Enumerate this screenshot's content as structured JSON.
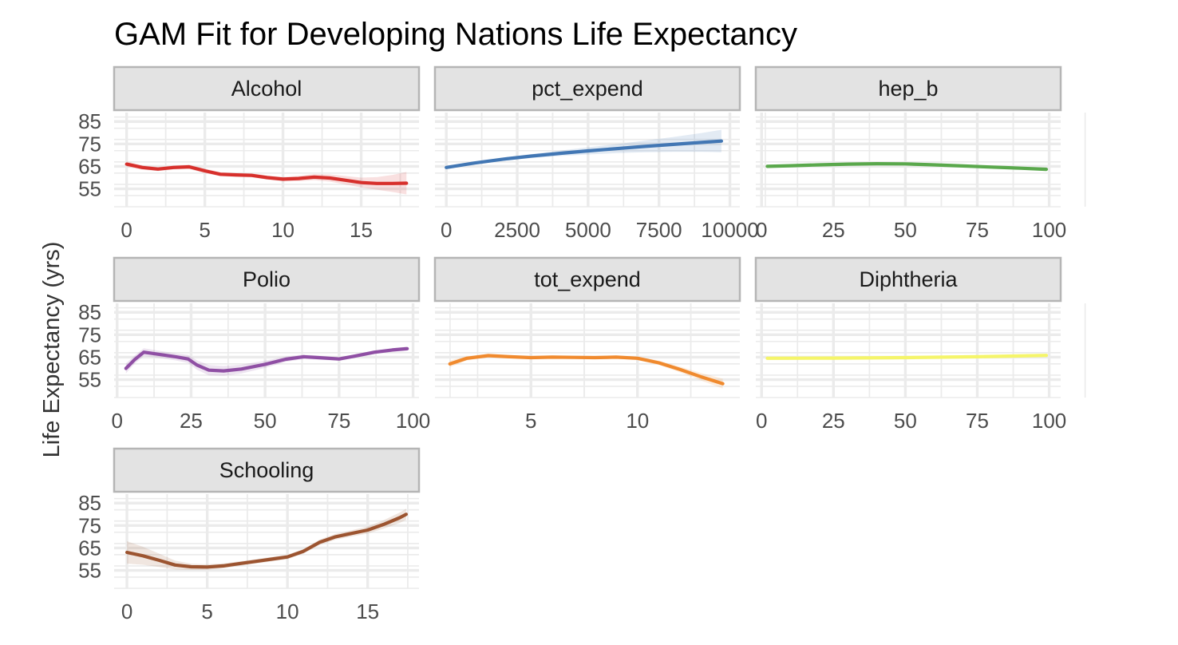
{
  "title": "GAM Fit for Developing Nations Life Expectancy",
  "ylabel": "Life Expectancy (yrs)",
  "y_ticks": [
    "85",
    "75",
    "65",
    "55"
  ],
  "colors": {
    "strip_fill": "#e3e3e3",
    "strip_border": "#b5b5b5",
    "grid": "#ebebeb",
    "tick_text": "#4d4d4d"
  },
  "chart_data": {
    "type": "line",
    "layout": "facet_wrap",
    "ylabel": "Life Expectancy (yrs)",
    "ylim": [
      47,
      89
    ],
    "y_ticks": [
      85,
      75,
      65,
      55
    ],
    "grid": true,
    "facets": [
      {
        "name": "Alcohol",
        "color": "#d7302c",
        "xlim": [
          -0.8,
          18.7
        ],
        "x_ticks": [
          {
            "value": 0,
            "label": "0"
          },
          {
            "value": 5,
            "label": "5"
          },
          {
            "value": 10,
            "label": "10"
          },
          {
            "value": 15,
            "label": "15"
          }
        ],
        "x": [
          0,
          1,
          2,
          3,
          4,
          5,
          6,
          7,
          8,
          9,
          10,
          11,
          12,
          13,
          14,
          15,
          16,
          17,
          17.9
        ],
        "y": [
          66,
          64.5,
          63.8,
          64.5,
          64.8,
          63,
          61.5,
          61.2,
          61,
          60,
          59.3,
          59.6,
          60.2,
          59.8,
          58.8,
          57.8,
          57.4,
          57.4,
          57.5
        ],
        "ci_half": [
          1.2,
          1,
          0.9,
          0.9,
          1,
          1,
          0.9,
          0.9,
          0.9,
          0.9,
          1,
          1.2,
          1.4,
          1.6,
          1.9,
          2.2,
          2.8,
          3.8,
          5
        ]
      },
      {
        "name": "pct_expend",
        "color": "#4277b4",
        "xlim": [
          -400,
          10350
        ],
        "x_ticks": [
          {
            "value": 0,
            "label": "0"
          },
          {
            "value": 2500,
            "label": "2500"
          },
          {
            "value": 5000,
            "label": "5000"
          },
          {
            "value": 7500,
            "label": "7500"
          },
          {
            "value": 10000,
            "label": "10000"
          }
        ],
        "x": [
          0,
          1000,
          2000,
          3000,
          4000,
          5000,
          6000,
          7000,
          8000,
          9000,
          9700
        ],
        "y": [
          64.5,
          66.5,
          68.2,
          69.6,
          70.8,
          71.9,
          72.9,
          73.9,
          74.8,
          75.7,
          76.3
        ],
        "ci_half": [
          0.6,
          0.6,
          0.7,
          0.9,
          1.2,
          1.6,
          2,
          2.6,
          3.3,
          4.2,
          5
        ]
      },
      {
        "name": "hep_b",
        "color": "#5aa84c",
        "xlim": [
          -2,
          104
        ],
        "x_ticks": [
          {
            "value": 0,
            "label": "0"
          },
          {
            "value": 25,
            "label": "25"
          },
          {
            "value": 50,
            "label": "50"
          },
          {
            "value": 75,
            "label": "75"
          },
          {
            "value": 100,
            "label": "100"
          }
        ],
        "x": [
          2,
          10,
          20,
          30,
          40,
          50,
          60,
          70,
          80,
          90,
          99
        ],
        "y": [
          65,
          65.3,
          65.7,
          66,
          66.2,
          66.1,
          65.7,
          65.2,
          64.7,
          64.2,
          63.7
        ],
        "ci_half": [
          0.7,
          0.6,
          0.5,
          0.5,
          0.5,
          0.5,
          0.5,
          0.5,
          0.5,
          0.6,
          0.8
        ]
      },
      {
        "name": "Polio",
        "color": "#8f4fa4",
        "xlim": [
          -1,
          102
        ],
        "x_ticks": [
          {
            "value": 0,
            "label": "0"
          },
          {
            "value": 25,
            "label": "25"
          },
          {
            "value": 50,
            "label": "50"
          },
          {
            "value": 75,
            "label": "75"
          },
          {
            "value": 100,
            "label": "100"
          }
        ],
        "x": [
          3,
          6,
          9,
          14,
          20,
          24,
          27,
          31,
          36,
          42,
          50,
          57,
          63,
          68,
          75,
          80,
          87,
          93,
          98
        ],
        "y": [
          60,
          64,
          67.2,
          66.3,
          65.1,
          64.2,
          61.5,
          59.2,
          58.9,
          59.7,
          61.8,
          64.1,
          65.2,
          64.8,
          64.2,
          65.4,
          67.2,
          68.2,
          68.8
        ],
        "ci_half": [
          2.2,
          1.8,
          1.8,
          1.6,
          1.6,
          1.8,
          2.1,
          2.3,
          2.2,
          2,
          1.6,
          1.2,
          1,
          0.9,
          0.8,
          0.8,
          0.8,
          0.8,
          0.9
        ]
      },
      {
        "name": "tot_expend",
        "color": "#f08a2e",
        "xlim": [
          0.5,
          14.8
        ],
        "x_ticks": [
          {
            "value": 5,
            "label": "5"
          },
          {
            "value": 10,
            "label": "10"
          }
        ],
        "x": [
          1.2,
          2,
          3,
          4,
          5,
          6,
          7,
          8,
          9,
          10,
          11,
          12,
          13,
          14
        ],
        "y": [
          62,
          64.5,
          65.7,
          65.2,
          64.8,
          65,
          64.9,
          64.8,
          65,
          64.5,
          62.5,
          59.5,
          56.2,
          53.2
        ],
        "ci_half": [
          1.5,
          0.9,
          0.8,
          0.7,
          0.6,
          0.6,
          0.6,
          0.6,
          0.7,
          0.8,
          1,
          1.3,
          1.7,
          2.2
        ]
      },
      {
        "name": "Diphtheria",
        "color": "#f5f56a",
        "xlim": [
          -2,
          104
        ],
        "x_ticks": [
          {
            "value": 0,
            "label": "0"
          },
          {
            "value": 25,
            "label": "25"
          },
          {
            "value": 50,
            "label": "50"
          },
          {
            "value": 75,
            "label": "75"
          },
          {
            "value": 100,
            "label": "100"
          }
        ],
        "x": [
          2,
          25,
          50,
          75,
          99
        ],
        "y": [
          64.5,
          64.6,
          64.8,
          65.2,
          65.8
        ],
        "ci_half": [
          0.5,
          0.4,
          0.4,
          0.4,
          0.5
        ]
      },
      {
        "name": "Schooling",
        "color": "#9c5430",
        "xlim": [
          -0.8,
          18.2
        ],
        "x_ticks": [
          {
            "value": 0,
            "label": "0"
          },
          {
            "value": 5,
            "label": "5"
          },
          {
            "value": 10,
            "label": "10"
          },
          {
            "value": 15,
            "label": "15"
          }
        ],
        "x": [
          0,
          1,
          2,
          3,
          4,
          5,
          6,
          7,
          8,
          9,
          10,
          11,
          12,
          13,
          14,
          15,
          16,
          17,
          17.4
        ],
        "y": [
          63,
          61.5,
          59.5,
          57.4,
          56.6,
          56.5,
          57,
          58,
          59,
          60,
          61,
          63.5,
          67.5,
          70,
          71.5,
          73,
          75.5,
          78.5,
          80
        ],
        "ci_half": [
          5,
          4,
          3,
          2,
          1.4,
          1.2,
          1.1,
          1,
          1,
          1,
          1,
          1,
          1.2,
          1.3,
          1.4,
          1.6,
          1.9,
          2.3,
          2.5
        ]
      }
    ]
  }
}
